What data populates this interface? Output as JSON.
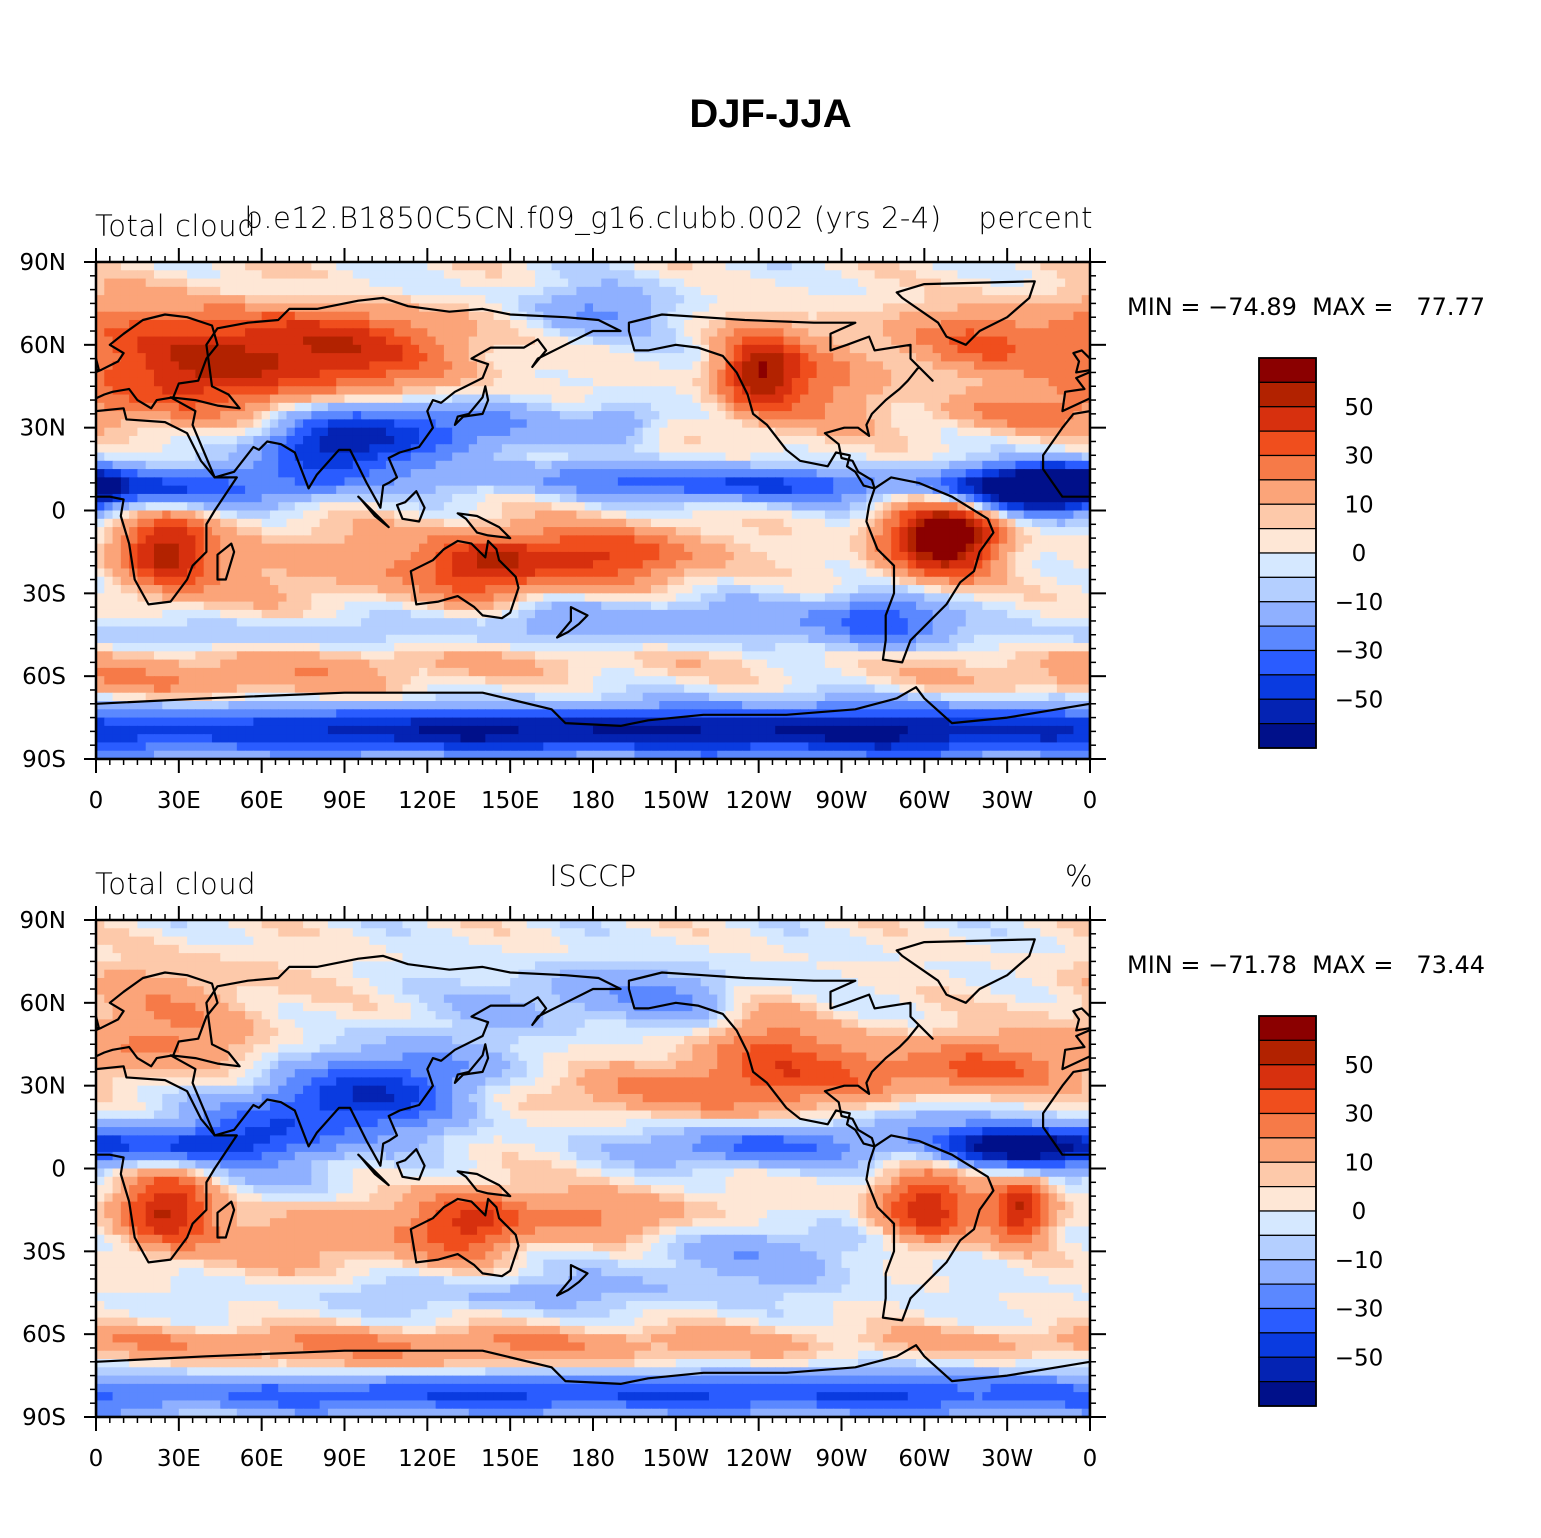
{
  "title": "DJF-JJA",
  "panels": [
    {
      "left_label": "Total cloud",
      "center_label": "b.e12.B1850C5CN.f09_g16.clubb.002 (yrs 2-4)",
      "right_label": "percent",
      "min_max": "MIN = −74.89  MAX =   77.77",
      "min": -74.89,
      "max": 77.77
    },
    {
      "left_label": "Total cloud",
      "center_label": "ISCCP",
      "right_label": "%",
      "min_max": "MIN = −71.78  MAX =   73.44",
      "min": -71.78,
      "max": 73.44
    }
  ],
  "lat_labels": [
    "90N",
    "60N",
    "30N",
    "0",
    "30S",
    "60S",
    "90S"
  ],
  "lon_labels": [
    "0",
    "30E",
    "60E",
    "90E",
    "120E",
    "150E",
    "180",
    "150W",
    "120W",
    "90W",
    "60W",
    "30W",
    "0"
  ],
  "colorbar": {
    "labels": [
      "50",
      "30",
      "10",
      "0",
      "−10",
      "−30",
      "−50"
    ],
    "colors": [
      "#8b0000",
      "#b22200",
      "#d7300e",
      "#f04e1d",
      "#f67a48",
      "#fba479",
      "#fdc9aa",
      "#fee7d6",
      "#d5e8ff",
      "#b4cfff",
      "#8fb0ff",
      "#5b88ff",
      "#2a5cff",
      "#0a3be0",
      "#0423b3",
      "#00108a"
    ]
  }
}
